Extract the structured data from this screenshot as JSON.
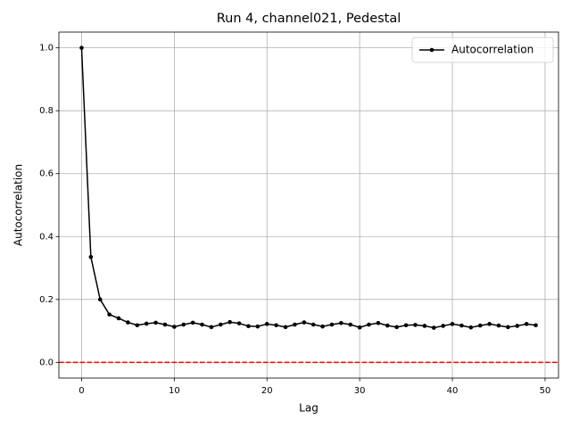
{
  "chart_data": {
    "type": "line",
    "title": "Run 4, channel021, Pedestal",
    "xlabel": "Lag",
    "ylabel": "Autocorrelation",
    "x": [
      0,
      1,
      2,
      3,
      4,
      5,
      6,
      7,
      8,
      9,
      10,
      11,
      12,
      13,
      14,
      15,
      16,
      17,
      18,
      19,
      20,
      21,
      22,
      23,
      24,
      25,
      26,
      27,
      28,
      29,
      30,
      31,
      32,
      33,
      34,
      35,
      36,
      37,
      38,
      39,
      40,
      41,
      42,
      43,
      44,
      45,
      46,
      47,
      48,
      49
    ],
    "series": [
      {
        "name": "Autocorrelation",
        "color": "#000000",
        "values": [
          1.0,
          0.335,
          0.2,
          0.152,
          0.14,
          0.127,
          0.118,
          0.123,
          0.126,
          0.12,
          0.113,
          0.12,
          0.126,
          0.12,
          0.112,
          0.12,
          0.128,
          0.124,
          0.115,
          0.114,
          0.122,
          0.118,
          0.112,
          0.12,
          0.127,
          0.12,
          0.114,
          0.12,
          0.125,
          0.12,
          0.111,
          0.12,
          0.125,
          0.117,
          0.112,
          0.118,
          0.119,
          0.116,
          0.11,
          0.116,
          0.122,
          0.117,
          0.111,
          0.117,
          0.122,
          0.117,
          0.112,
          0.116,
          0.122,
          0.118
        ]
      }
    ],
    "hline": {
      "value": 0,
      "color": "#ff0000",
      "style": "dashed"
    },
    "xlim": [
      -2.45,
      51.45
    ],
    "ylim": [
      -0.05,
      1.05
    ],
    "xticks": [
      0,
      10,
      20,
      30,
      40,
      50
    ],
    "yticks": [
      {
        "value": 0,
        "label": "0.0"
      },
      {
        "value": 0.2,
        "label": "0.2"
      },
      {
        "value": 0.4,
        "label": "0.4"
      },
      {
        "value": 0.6,
        "label": "0.6"
      },
      {
        "value": 0.8,
        "label": "0.8"
      },
      {
        "value": 1,
        "label": "1.0"
      }
    ],
    "grid": true,
    "legend": "upper right"
  }
}
